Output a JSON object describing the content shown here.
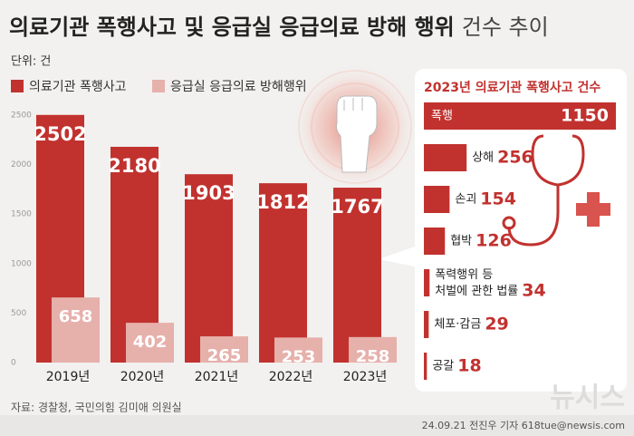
{
  "title": "의료기관 폭행사고 및 응급실 응급의료 방해 행위",
  "title_suffix": "건수 추이",
  "unit": "단위: 건",
  "source": "자료: 경찰청, 국민의힘 김미애 의원실",
  "credit": "24.09.21 전진우 기자 618tue@newsis.com",
  "watermark": "뉴시스",
  "chart_data": [
    {
      "type": "bar",
      "categories": [
        "2019년",
        "2020년",
        "2021년",
        "2022년",
        "2023년"
      ],
      "series": [
        {
          "name": "의료기관 폭행사고",
          "color": "#c1322f",
          "values": [
            2502,
            2180,
            1903,
            1812,
            1767
          ]
        },
        {
          "name": "응급실 응급의료 방해행위",
          "color": "#e6b0ab",
          "values": [
            658,
            402,
            265,
            253,
            258
          ]
        }
      ],
      "ylim": [
        0,
        2500
      ],
      "yticks": [
        0,
        500,
        1000,
        1500,
        2000,
        2500
      ],
      "grid": false,
      "legend": "top-left"
    },
    {
      "type": "hbar",
      "title": "2023년 의료기관 폭행사고 건수",
      "categories": [
        "폭행",
        "상해",
        "손괴",
        "협박",
        "폭력행위 등\n처벌에 관한 법률",
        "체포·감금",
        "공갈"
      ],
      "values": [
        1150,
        256,
        154,
        126,
        34,
        29,
        18
      ],
      "color": "#c1322f",
      "xlim": [
        0,
        1150
      ]
    }
  ]
}
